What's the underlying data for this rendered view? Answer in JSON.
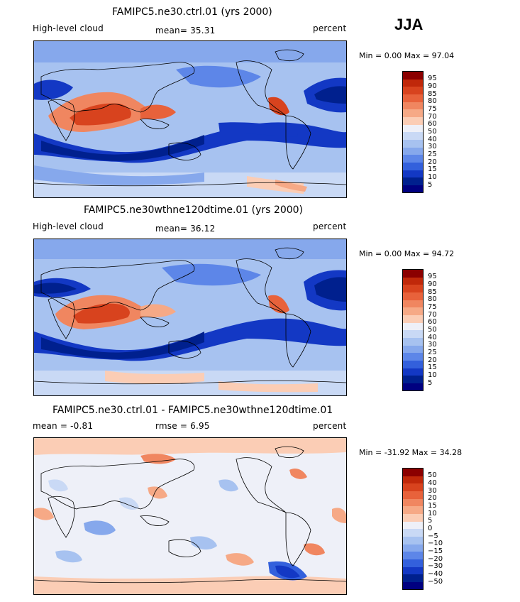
{
  "season": "JJA",
  "panels": [
    {
      "title": "FAMIPC5.ne30.ctrl.01 (yrs 2000)",
      "left_label": "High-level cloud",
      "mid_label": "mean=  35.31",
      "units": "percent",
      "minmax": "Min =   0.00 Max =  97.04",
      "colorbar_labels": [
        "95",
        "90",
        "85",
        "80",
        "75",
        "70",
        "60",
        "50",
        "40",
        "30",
        "25",
        "20",
        "15",
        "10",
        "5"
      ]
    },
    {
      "title": "FAMIPC5.ne30wthne120dtime.01 (yrs 2000)",
      "left_label": "High-level cloud",
      "mid_label": "mean=  36.12",
      "units": "percent",
      "minmax": "Min =   0.00 Max =  94.72",
      "colorbar_labels": [
        "95",
        "90",
        "85",
        "80",
        "75",
        "70",
        "60",
        "50",
        "40",
        "30",
        "25",
        "20",
        "15",
        "10",
        "5"
      ]
    },
    {
      "title": "FAMIPC5.ne30.ctrl.01 - FAMIPC5.ne30wthne120dtime.01",
      "left_label": "mean =  -0.81",
      "mid_label": "rmse =   6.95",
      "units": "percent",
      "minmax": "Min = -31.92 Max =  34.28",
      "colorbar_labels": [
        "50",
        "40",
        "30",
        "20",
        "15",
        "10",
        "5",
        "0",
        "−5",
        "−10",
        "−15",
        "−20",
        "−30",
        "−40",
        "−50"
      ]
    }
  ],
  "colors": {
    "scale": [
      "#8b0000",
      "#c0280a",
      "#d8431e",
      "#e8623b",
      "#f08660",
      "#f6a986",
      "#fbcdb5",
      "#eef0f8",
      "#c9d9f5",
      "#a7c2f0",
      "#86a8ec",
      "#5d86e8",
      "#3360dc",
      "#1338c4",
      "#00208e",
      "#000080"
    ]
  }
}
